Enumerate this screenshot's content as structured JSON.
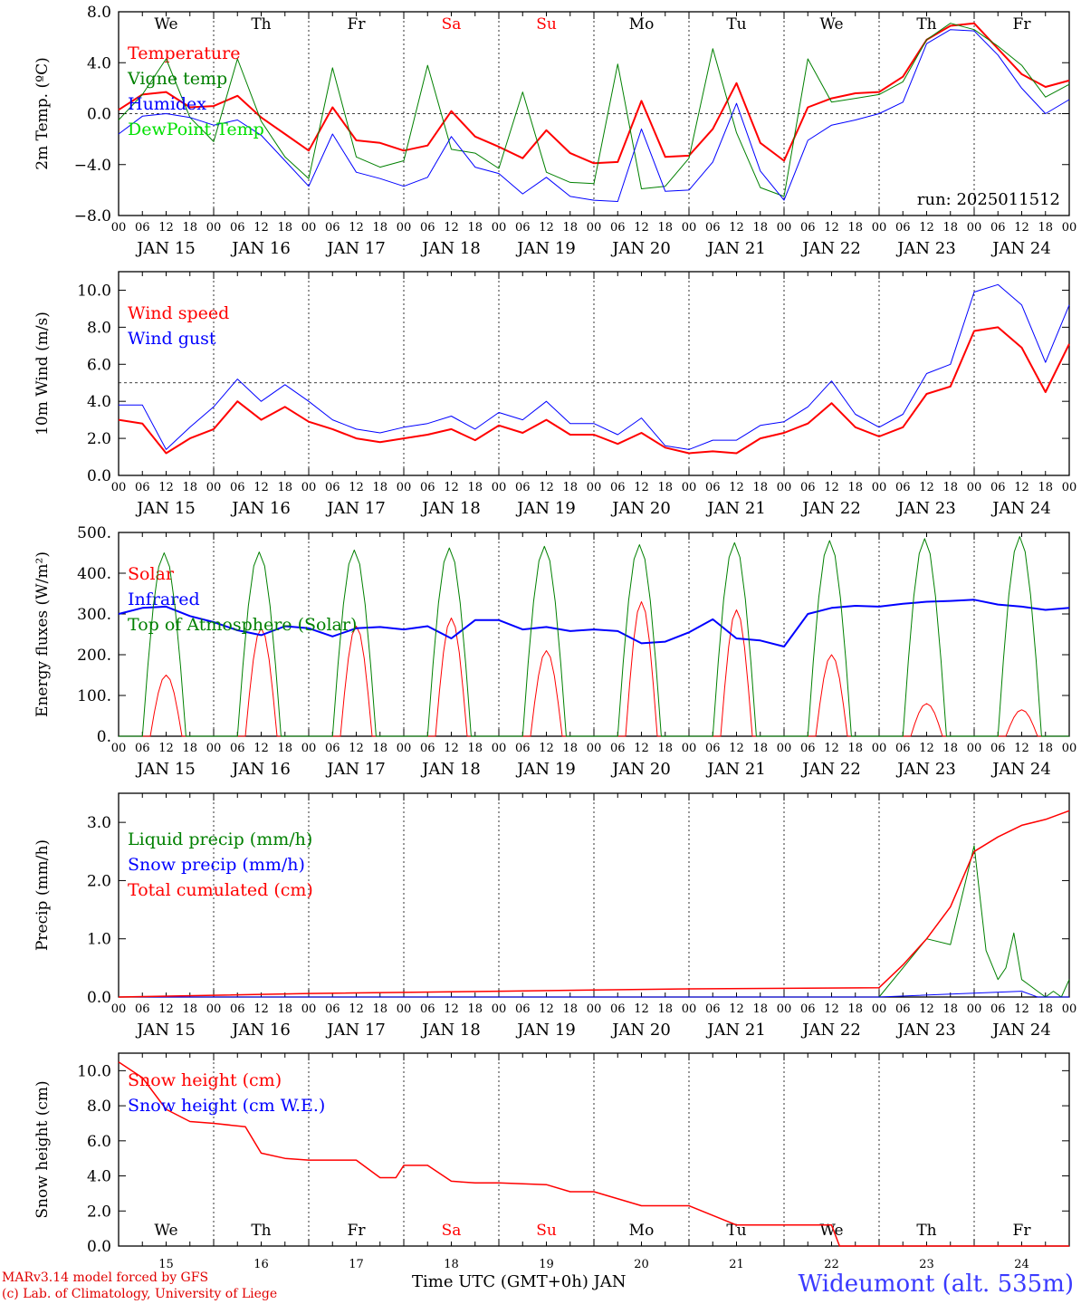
{
  "footer": {
    "credit_line1": "MARv3.14 model forced by GFS",
    "credit_line2": "(c) Lab. of Climatology, University of Liege",
    "x_title": "Time UTC (GMT+0h) JAN",
    "station": "Wideumont (alt. 535m)",
    "run": "run: 2025011512"
  },
  "colors": {
    "red": "#ff0000",
    "green": "#008000",
    "blue": "#0000ff",
    "lightgreen": "#00e000",
    "weekend": "#ff0000"
  },
  "days": [
    "We",
    "Th",
    "Fr",
    "Sa",
    "Su",
    "Mo",
    "Tu",
    "We",
    "Th",
    "Fr"
  ],
  "weekend_days": [
    "Sa",
    "Su"
  ],
  "date_labels": [
    "JAN 15",
    "JAN 16",
    "JAN 17",
    "JAN 18",
    "JAN 19",
    "JAN 20",
    "JAN 21",
    "JAN 22",
    "JAN 23",
    "JAN 24"
  ],
  "day_numbers": [
    "15",
    "16",
    "17",
    "18",
    "19",
    "20",
    "21",
    "22",
    "23",
    "24"
  ],
  "hour_ticks": [
    "00",
    "06",
    "12",
    "18"
  ],
  "chart_data": [
    {
      "type": "line",
      "ylabel": "2m Temp. (ºC)",
      "ylim": [
        -8,
        8
      ],
      "yticks": [
        "8.0",
        "4.0",
        "0.0",
        "−4.0",
        "−8.0"
      ],
      "ytick_values": [
        8,
        4,
        0,
        -4,
        -8
      ],
      "ref_line": 0,
      "show_days": true,
      "xlim": [
        0,
        240
      ],
      "series": [
        {
          "name": "Temperature",
          "color": "red",
          "width": 2,
          "x": [
            0,
            6,
            12,
            18,
            24,
            30,
            36,
            42,
            48,
            54,
            60,
            66,
            72,
            78,
            84,
            90,
            96,
            102,
            108,
            114,
            120,
            126,
            132,
            138,
            144,
            150,
            156,
            162,
            168,
            174,
            180,
            186,
            192,
            198,
            204,
            210,
            216,
            222,
            228,
            234,
            240
          ],
          "y": [
            0.3,
            1.5,
            1.7,
            0.5,
            0.6,
            1.4,
            -0.3,
            -1.6,
            -2.9,
            0.5,
            -2.1,
            -2.3,
            -2.9,
            -2.5,
            0.2,
            -1.8,
            -2.6,
            -3.5,
            -1.3,
            -3.1,
            -3.9,
            -3.8,
            1.0,
            -3.4,
            -3.3,
            -1.2,
            2.4,
            -2.3,
            -3.7,
            0.5,
            1.2,
            1.6,
            1.7,
            2.9,
            5.8,
            6.9,
            7.1,
            5.1,
            3.1,
            2.1,
            2.6
          ]
        },
        {
          "name": "Vigne temp",
          "color": "green",
          "width": 1,
          "x": [
            0,
            6,
            12,
            18,
            24,
            30,
            36,
            42,
            48,
            54,
            60,
            66,
            72,
            78,
            84,
            90,
            96,
            102,
            108,
            114,
            120,
            126,
            132,
            138,
            144,
            150,
            156,
            162,
            168,
            174,
            180,
            186,
            192,
            198,
            204,
            210,
            216,
            222,
            228,
            234,
            240
          ],
          "y": [
            -0.5,
            1.5,
            4.3,
            -0.3,
            -2.2,
            4.3,
            -0.6,
            -3.4,
            -5.1,
            3.6,
            -3.4,
            -4.2,
            -3.7,
            3.8,
            -2.8,
            -3.1,
            -4.3,
            1.7,
            -4.6,
            -5.4,
            -5.5,
            3.9,
            -5.9,
            -5.7,
            -3.5,
            5.1,
            -1.5,
            -5.8,
            -6.5,
            4.3,
            0.9,
            1.2,
            1.5,
            2.5,
            5.8,
            7.1,
            6.6,
            5.3,
            3.8,
            1.3,
            2.3
          ]
        },
        {
          "name": "Humidex",
          "color": "blue",
          "width": 1,
          "x": [
            0,
            6,
            12,
            18,
            24,
            30,
            36,
            42,
            48,
            54,
            60,
            66,
            72,
            78,
            84,
            90,
            96,
            102,
            108,
            114,
            120,
            126,
            132,
            138,
            144,
            150,
            156,
            162,
            168,
            174,
            180,
            186,
            192,
            198,
            204,
            210,
            216,
            222,
            228,
            234,
            240
          ],
          "y": [
            -1.6,
            -0.2,
            0.0,
            -0.3,
            -0.9,
            -0.5,
            -1.7,
            -3.7,
            -5.7,
            -1.6,
            -4.6,
            -5.1,
            -5.7,
            -5.0,
            -1.8,
            -4.2,
            -4.7,
            -6.3,
            -5.0,
            -6.5,
            -6.8,
            -6.9,
            -1.2,
            -6.1,
            -6.0,
            -3.8,
            0.8,
            -4.5,
            -6.8,
            -2.1,
            -0.9,
            -0.5,
            0.0,
            0.9,
            5.5,
            6.6,
            6.5,
            4.6,
            2.0,
            0.0,
            1.1
          ]
        },
        {
          "name": "DewPoint Temp",
          "color": "lightgreen",
          "width": 1,
          "x": [],
          "y": []
        }
      ]
    },
    {
      "type": "line",
      "ylabel": "10m Wind (m/s)",
      "ylim": [
        0,
        11
      ],
      "yticks": [
        "10.0",
        "8.0",
        "6.0",
        "4.0",
        "2.0",
        "0.0"
      ],
      "ytick_values": [
        10,
        8,
        6,
        4,
        2,
        0
      ],
      "ref_line": 5,
      "show_days": false,
      "xlim": [
        0,
        240
      ],
      "series": [
        {
          "name": "Wind speed",
          "color": "red",
          "width": 2,
          "x": [
            0,
            6,
            12,
            18,
            24,
            30,
            36,
            42,
            48,
            54,
            60,
            66,
            72,
            78,
            84,
            90,
            96,
            102,
            108,
            114,
            120,
            126,
            132,
            138,
            144,
            150,
            156,
            162,
            168,
            174,
            180,
            186,
            192,
            198,
            204,
            210,
            216,
            222,
            228,
            234,
            240
          ],
          "y": [
            3.0,
            2.8,
            1.2,
            2.0,
            2.5,
            4.0,
            3.0,
            3.7,
            2.9,
            2.5,
            2.0,
            1.8,
            2.0,
            2.2,
            2.5,
            1.9,
            2.7,
            2.3,
            3.0,
            2.2,
            2.2,
            1.7,
            2.3,
            1.5,
            1.2,
            1.3,
            1.2,
            2.0,
            2.3,
            2.8,
            3.9,
            2.6,
            2.1,
            2.6,
            4.4,
            4.8,
            7.8,
            8.0,
            6.9,
            4.5,
            7.1
          ]
        },
        {
          "name": "Wind gust",
          "color": "blue",
          "width": 1,
          "x": [
            0,
            6,
            12,
            18,
            24,
            30,
            36,
            42,
            48,
            54,
            60,
            66,
            72,
            78,
            84,
            90,
            96,
            102,
            108,
            114,
            120,
            126,
            132,
            138,
            144,
            150,
            156,
            162,
            168,
            174,
            180,
            186,
            192,
            198,
            204,
            210,
            216,
            222,
            228,
            234,
            240
          ],
          "y": [
            3.8,
            3.8,
            1.4,
            2.6,
            3.7,
            5.2,
            4.0,
            4.9,
            4.0,
            3.0,
            2.5,
            2.3,
            2.6,
            2.8,
            3.2,
            2.5,
            3.4,
            3.0,
            4.0,
            2.8,
            2.8,
            2.2,
            3.1,
            1.6,
            1.4,
            1.9,
            1.9,
            2.7,
            2.9,
            3.7,
            5.1,
            3.3,
            2.6,
            3.3,
            5.5,
            6.0,
            9.9,
            10.3,
            9.2,
            6.1,
            9.2
          ]
        }
      ]
    },
    {
      "type": "line",
      "ylabel": "Energy fluxes (W/m²)",
      "ylim": [
        0,
        500
      ],
      "yticks": [
        "500.",
        "400.",
        "300.",
        "200.",
        "100.",
        "0."
      ],
      "ytick_values": [
        500,
        400,
        300,
        200,
        100,
        0
      ],
      "ref_line": null,
      "show_days": false,
      "xlim": [
        0,
        240
      ],
      "series": [
        {
          "name": "Solar",
          "color": "red",
          "width": 1,
          "x": [],
          "y": [],
          "peaks": [
            150,
            265,
            270,
            290,
            210,
            330,
            310,
            200,
            80,
            65
          ],
          "diurnal": [
            8,
            12,
            16
          ]
        },
        {
          "name": "Infrared",
          "color": "blue",
          "width": 2,
          "x": [
            0,
            6,
            12,
            18,
            24,
            30,
            36,
            42,
            48,
            54,
            60,
            66,
            72,
            78,
            84,
            90,
            96,
            102,
            108,
            114,
            120,
            126,
            132,
            138,
            144,
            150,
            156,
            162,
            168,
            174,
            180,
            186,
            192,
            198,
            204,
            210,
            216,
            222,
            228,
            234,
            240
          ],
          "y": [
            300,
            315,
            318,
            295,
            280,
            260,
            248,
            270,
            265,
            245,
            265,
            268,
            262,
            270,
            240,
            285,
            285,
            262,
            268,
            258,
            262,
            258,
            228,
            232,
            255,
            287,
            240,
            235,
            220,
            300,
            315,
            320,
            318,
            325,
            330,
            332,
            335,
            323,
            318,
            310,
            315
          ]
        },
        {
          "name": "Top of Atmosphere (Solar)",
          "color": "green",
          "width": 1,
          "x": [],
          "y": [],
          "peaks": [
            450,
            452,
            457,
            462,
            466,
            470,
            475,
            480,
            485,
            490
          ],
          "diurnal": [
            6,
            12,
            17
          ]
        }
      ]
    },
    {
      "type": "line",
      "ylabel": "Precip (mm/h)",
      "ylim": [
        0,
        3.5
      ],
      "yticks": [
        "3.0",
        "2.0",
        "1.0",
        "0.0"
      ],
      "ytick_values": [
        3,
        2,
        1,
        0
      ],
      "ref_line": null,
      "show_days": false,
      "xlim": [
        0,
        240
      ],
      "series": [
        {
          "name": "Liquid precip (mm/h)",
          "color": "green",
          "width": 1,
          "x": [
            0,
            48,
            96,
            144,
            192,
            198,
            204,
            210,
            216,
            219,
            222,
            224,
            226,
            228,
            230,
            232,
            234,
            236,
            238,
            240
          ],
          "y": [
            0,
            0,
            0,
            0,
            0,
            0.5,
            1.0,
            0.9,
            2.6,
            0.8,
            0.3,
            0.5,
            1.1,
            0.3,
            0.2,
            0.1,
            0,
            0.1,
            0,
            0.3
          ]
        },
        {
          "name": "Snow precip (mm/h)",
          "color": "blue",
          "width": 1,
          "x": [
            0,
            192,
            228,
            232,
            240
          ],
          "y": [
            0,
            0,
            0.1,
            0,
            0
          ]
        },
        {
          "name": "Total cumulated (cm)",
          "color": "red",
          "width": 1.5,
          "x": [
            0,
            48,
            96,
            144,
            192,
            198,
            204,
            210,
            216,
            222,
            228,
            234,
            240
          ],
          "y": [
            0,
            0.06,
            0.1,
            0.14,
            0.16,
            0.55,
            1.0,
            1.55,
            2.5,
            2.75,
            2.95,
            3.05,
            3.2
          ]
        }
      ]
    },
    {
      "type": "line",
      "ylabel": "Snow height (cm)",
      "ylim": [
        0,
        11
      ],
      "yticks": [
        "10.0",
        "8.0",
        "6.0",
        "4.0",
        "2.0",
        "0.0"
      ],
      "ytick_values": [
        10,
        8,
        6,
        4,
        2,
        0
      ],
      "ref_line": null,
      "show_days": true,
      "xlim": [
        0,
        240
      ],
      "series": [
        {
          "name": "Snow height (cm)",
          "color": "red",
          "width": 1.5,
          "x": [
            0,
            6,
            12,
            18,
            24,
            32,
            36,
            42,
            48,
            60,
            66,
            70,
            72,
            78,
            84,
            90,
            96,
            108,
            114,
            120,
            132,
            138,
            144,
            156,
            162,
            168,
            174,
            180,
            182,
            184,
            192,
            240
          ],
          "y": [
            10.5,
            9.6,
            7.8,
            7.1,
            7.0,
            6.8,
            5.3,
            5.0,
            4.9,
            4.9,
            3.9,
            3.9,
            4.6,
            4.6,
            3.7,
            3.6,
            3.6,
            3.5,
            3.1,
            3.1,
            2.3,
            2.3,
            2.3,
            1.2,
            1.2,
            1.2,
            1.2,
            1.2,
            0,
            0,
            0,
            0
          ]
        },
        {
          "name": "Snow height (cm W.E.)",
          "color": "blue",
          "width": 1,
          "x": [],
          "y": []
        }
      ]
    }
  ]
}
